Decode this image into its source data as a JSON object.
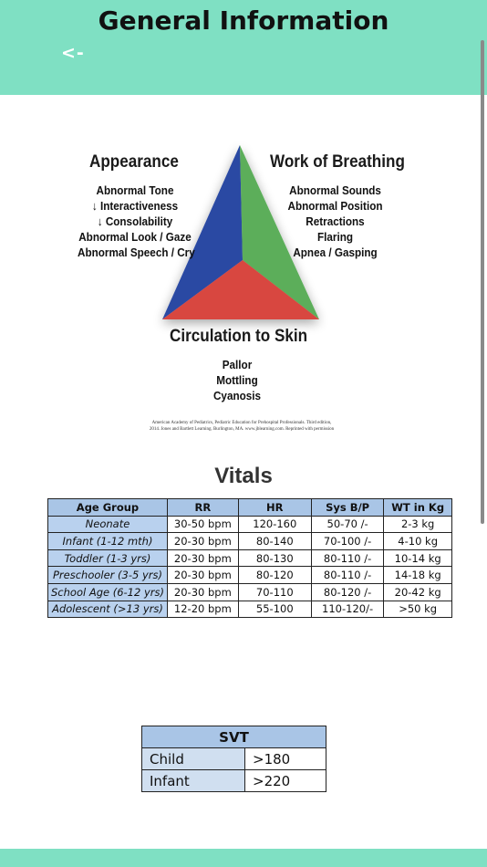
{
  "header": {
    "title": "General Information",
    "back_label": "<-"
  },
  "pat": {
    "appearance": {
      "heading": "Appearance",
      "items": [
        "Abnormal Tone",
        "↓ Interactiveness",
        "↓ Consolability",
        "Abnormal Look / Gaze",
        "Abnormal Speech / Cry"
      ]
    },
    "breathing": {
      "heading": "Work of Breathing",
      "items": [
        "Abnormal Sounds",
        "Abnormal Position",
        "Retractions",
        "Flaring",
        "Apnea / Gasping"
      ]
    },
    "circulation": {
      "heading": "Circulation to Skin",
      "items": [
        "Pallor",
        "Mottling",
        "Cyanosis"
      ]
    },
    "citation_line1": "American Academy of Pediatrics, Pediatric Education for Prehospital Professionals. Third edition,",
    "citation_line2": "2014. Jones and Bartlett Learning. Burlington, MA. www.jblearning.com. Reprinted with permission",
    "colors": {
      "blue": "#2c4aa3",
      "green": "#5cae5a",
      "red": "#d8473f"
    }
  },
  "vitals": {
    "title": "Vitals",
    "headers": [
      "Age Group",
      "RR",
      "HR",
      "Sys B/P",
      "WT in Kg"
    ],
    "rows": [
      [
        "Neonate",
        "30-50 bpm",
        "120-160",
        "50-70 /-",
        "2-3 kg"
      ],
      [
        "Infant (1-12 mth)",
        "20-30 bpm",
        "80-140",
        "70-100 /-",
        "4-10 kg"
      ],
      [
        "Toddler (1-3 yrs)",
        "20-30 bpm",
        "80-130",
        "80-110 /-",
        "10-14 kg"
      ],
      [
        "Preschooler (3-5 yrs)",
        "20-30 bpm",
        "80-120",
        "80-110 /-",
        "14-18 kg"
      ],
      [
        "School Age (6-12 yrs)",
        "20-30 bpm",
        "70-110",
        "80-120 /-",
        "20-42 kg"
      ],
      [
        "Adolescent (>13 yrs)",
        "12-20 bpm",
        "55-100",
        "110-120/-",
        ">50 kg"
      ]
    ]
  },
  "svt": {
    "title": "SVT",
    "rows": [
      [
        "Child",
        ">180"
      ],
      [
        "Infant",
        ">220"
      ]
    ]
  }
}
